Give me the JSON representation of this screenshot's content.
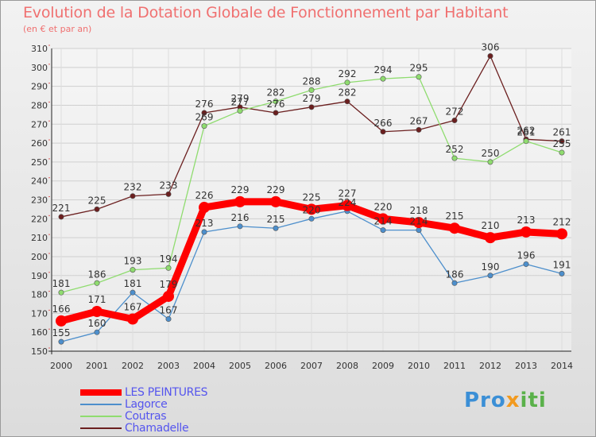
{
  "chart_data": {
    "type": "line",
    "title": "Evolution de la Dotation Globale de Fonctionnement par Habitant",
    "subtitle": "(en € et par an)",
    "xlabel": "",
    "ylabel": "",
    "x": [
      "2000",
      "2001",
      "2002",
      "2003",
      "2004",
      "2005",
      "2006",
      "2007",
      "2008",
      "2009",
      "2010",
      "2011",
      "2012",
      "2013",
      "2014"
    ],
    "ylim": [
      150,
      310
    ],
    "yticks": [
      150,
      160,
      170,
      180,
      190,
      200,
      210,
      220,
      230,
      240,
      250,
      260,
      270,
      280,
      290,
      300,
      310
    ],
    "grid": true,
    "legend_position": "bottom-left",
    "series": [
      {
        "name": "LES PEINTURES",
        "color": "#ff0000",
        "values": [
          166,
          171,
          167,
          179,
          226,
          229,
          229,
          225,
          227,
          220,
          218,
          215,
          210,
          213,
          212
        ]
      },
      {
        "name": "Lagorce",
        "color": "#4d8fcc",
        "values": [
          155,
          160,
          181,
          167,
          213,
          216,
          215,
          220,
          224,
          214,
          214,
          186,
          190,
          196,
          191
        ]
      },
      {
        "name": "Coutras",
        "color": "#8fdc6f",
        "values": [
          181,
          186,
          193,
          194,
          269,
          277,
          282,
          288,
          292,
          294,
          295,
          252,
          250,
          261,
          255
        ]
      },
      {
        "name": "Chamadelle",
        "color": "#6b1f1f",
        "values": [
          221,
          225,
          232,
          233,
          276,
          279,
          276,
          279,
          282,
          266,
          267,
          272,
          306,
          262,
          261
        ]
      }
    ]
  },
  "logo": {
    "part1": "Pro",
    "part2": "x",
    "part3": "iti"
  }
}
